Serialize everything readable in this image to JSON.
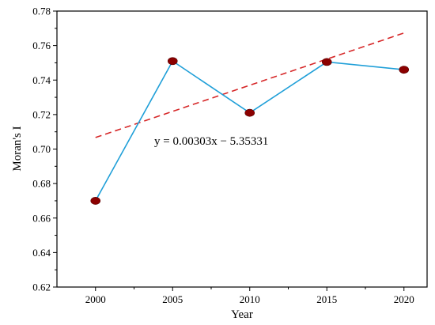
{
  "chart_data": {
    "type": "line",
    "xlabel": "Year",
    "ylabel": "Moran's I",
    "x": [
      2000,
      2005,
      2010,
      2015,
      2020
    ],
    "series": [
      {
        "values": [
          0.67,
          0.751,
          0.721,
          0.7505,
          0.746
        ],
        "line_color": "#1f9fd8",
        "marker_color": "#8b0000"
      }
    ],
    "trendline": {
      "slope": 0.00303,
      "intercept": -5.35331,
      "x_range": [
        2000,
        2020
      ],
      "color": "#d62728",
      "style": "dashed"
    },
    "annotations": [
      {
        "text": "y = 0.00303x − 5.35331"
      }
    ],
    "xlim": [
      1997.5,
      2021.5
    ],
    "ylim": [
      0.62,
      0.78
    ],
    "xticks": [
      "2000",
      "2005",
      "2010",
      "2015",
      "2020"
    ],
    "yticks": [
      "0.62",
      "0.64",
      "0.66",
      "0.68",
      "0.70",
      "0.72",
      "0.74",
      "0.76",
      "0.78"
    ],
    "xtick_values": [
      2000,
      2005,
      2010,
      2015,
      2020
    ],
    "ytick_values": [
      0.62,
      0.64,
      0.66,
      0.68,
      0.7,
      0.72,
      0.74,
      0.76,
      0.78
    ],
    "grid": false,
    "legend": "none"
  }
}
